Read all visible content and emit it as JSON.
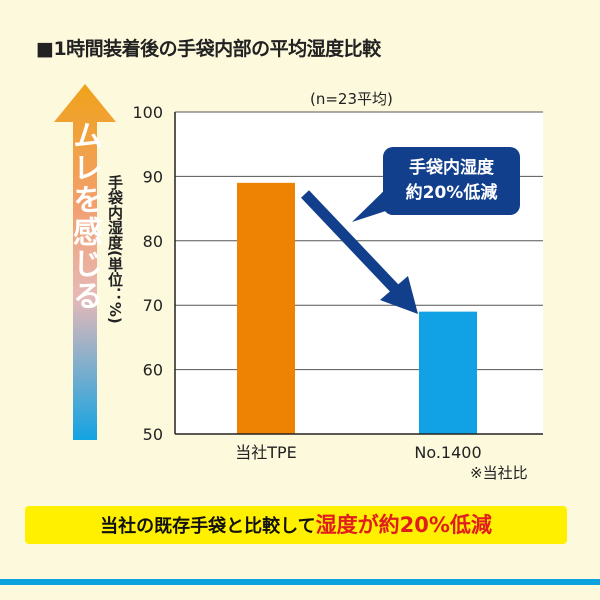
{
  "title": "■1時間装着後の手袋内部の平均湿度比較",
  "arrow_label": "ムレを感じる",
  "callout": {
    "line1": "手袋内湿度",
    "line2": "約20%低減"
  },
  "footnote": "※当社比",
  "banner": {
    "black": "当社の既存手袋と比較して",
    "red": "湿度が約20%低減"
  },
  "colors": {
    "bar1": "#ee8203",
    "bar2": "#10a2e5",
    "callout": "#123f8c",
    "banner": "#fff000",
    "accent_red": "#e01c1c"
  },
  "chart_data": {
    "type": "bar",
    "title": "1時間装着後の手袋内部の平均湿度比較",
    "subtitle": "(n=23平均)",
    "categories": [
      "当社TPE",
      "No.1400"
    ],
    "values": [
      89,
      69
    ],
    "ylabel": "手袋内湿度(単位：%)",
    "xlabel": "",
    "ylim": [
      50,
      100
    ],
    "yticks": [
      50,
      60,
      70,
      80,
      90,
      100
    ],
    "grid": true
  }
}
